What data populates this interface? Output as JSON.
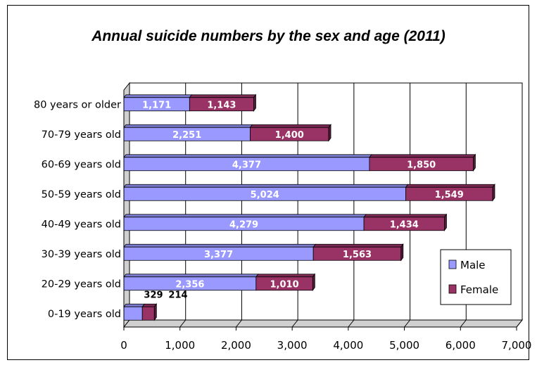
{
  "chart_data": {
    "type": "bar",
    "orientation": "horizontal",
    "stacked": true,
    "three_d": true,
    "title": "Annual suicide numbers by the sex and age (2011)",
    "categories": [
      "80 years or older",
      "70-79 years old",
      "60-69 years old",
      "50-59 years old",
      "40-49 years old",
      "30-39 years old",
      "20-29 years old",
      "0-19 years old"
    ],
    "series": [
      {
        "name": "Male",
        "color": "#9999ff",
        "values": [
          1171,
          2251,
          4377,
          5024,
          4279,
          3377,
          2356,
          329
        ]
      },
      {
        "name": "Female",
        "color": "#993366",
        "values": [
          1143,
          1400,
          1850,
          1549,
          1434,
          1563,
          1010,
          214
        ]
      }
    ],
    "data_labels": [
      [
        "1,171",
        "2,251",
        "4,377",
        "5,024",
        "4,279",
        "3,377",
        "2,356",
        "329"
      ],
      [
        "1,143",
        "1,400",
        "1,850",
        "1,549",
        "1,434",
        "1,563",
        "1,010",
        "214"
      ]
    ],
    "xlim": [
      0,
      7000
    ],
    "x_ticks": [
      0,
      1000,
      2000,
      3000,
      4000,
      5000,
      6000,
      7000
    ],
    "x_tick_labels": [
      "0",
      "1,000",
      "2,000",
      "3,000",
      "4,000",
      "5,000",
      "6,000",
      "7,000"
    ],
    "grid": true,
    "legend_position": "right"
  }
}
